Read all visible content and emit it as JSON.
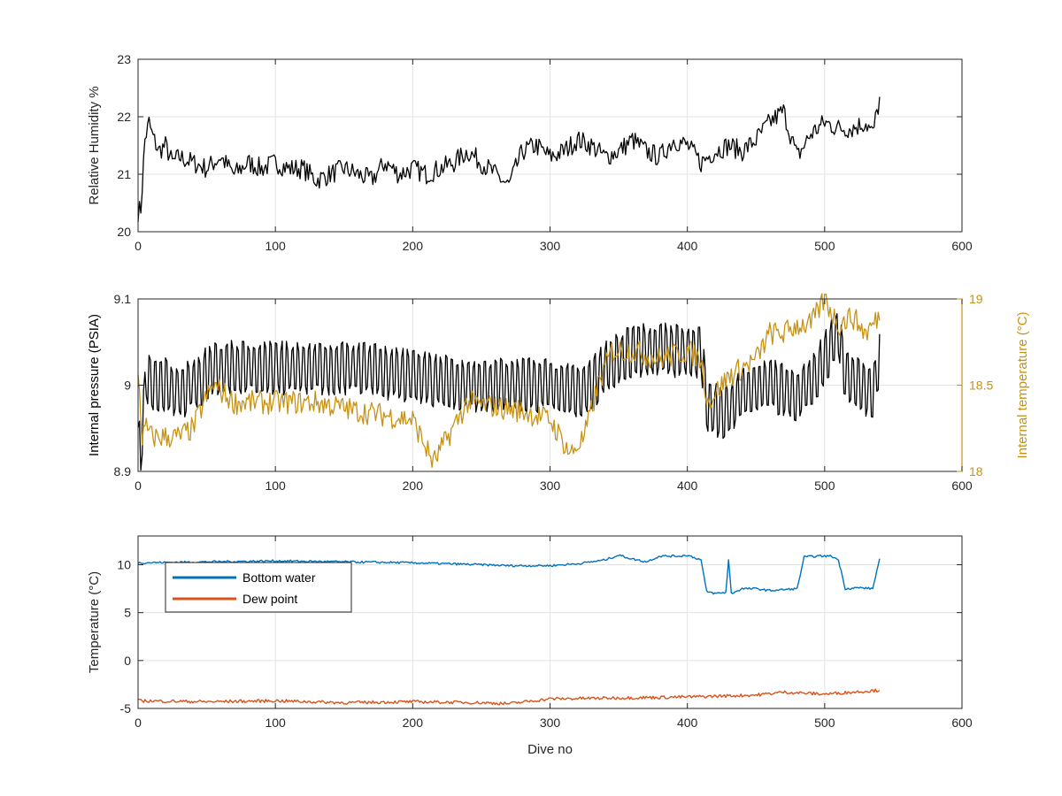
{
  "figure": {
    "background": "#ffffff"
  },
  "chart_data": [
    {
      "type": "line",
      "xlabel": "",
      "ylabel": "Relative Humidity %",
      "xlim": [
        0,
        600
      ],
      "ylim": [
        20,
        23
      ],
      "xticks": [
        "0",
        "100",
        "200",
        "300",
        "400",
        "500",
        "600"
      ],
      "yticks": [
        "20",
        "21",
        "22",
        "23"
      ],
      "grid": true,
      "series": [
        {
          "color": "#000000",
          "x": [
            0,
            2,
            5,
            8,
            10,
            15,
            20,
            25,
            30,
            40,
            50,
            60,
            70,
            80,
            90,
            100,
            110,
            120,
            130,
            140,
            150,
            160,
            170,
            180,
            190,
            200,
            210,
            220,
            230,
            240,
            250,
            260,
            270,
            280,
            290,
            300,
            310,
            320,
            330,
            340,
            350,
            360,
            370,
            380,
            390,
            400,
            410,
            420,
            430,
            440,
            450,
            460,
            470,
            480,
            490,
            500,
            510,
            520,
            530,
            535,
            540
          ],
          "y": [
            20.35,
            20.4,
            21.6,
            21.9,
            21.7,
            21.4,
            21.5,
            21.2,
            21.3,
            21.2,
            21.1,
            21.3,
            21.0,
            21.2,
            21.1,
            21.2,
            21.1,
            21.1,
            20.9,
            21.0,
            21.1,
            21.0,
            20.9,
            21.2,
            21.0,
            21.1,
            21.0,
            21.1,
            21.2,
            21.4,
            21.2,
            21.0,
            20.8,
            21.4,
            21.5,
            21.3,
            21.4,
            21.6,
            21.5,
            21.3,
            21.4,
            21.6,
            21.4,
            21.3,
            21.6,
            21.5,
            21.2,
            21.4,
            21.5,
            21.4,
            21.6,
            21.9,
            22.1,
            21.3,
            21.7,
            21.9,
            21.8,
            21.8,
            21.9,
            21.7,
            22.3
          ]
        }
      ]
    },
    {
      "type": "line",
      "xlabel": "",
      "ylabel": "Internal pressure (PSIA)",
      "ylabel_right": "Internal temperature (°C)",
      "xlim": [
        0,
        600
      ],
      "ylim": [
        8.9,
        9.1
      ],
      "ylim_right": [
        18,
        19
      ],
      "xticks": [
        "0",
        "100",
        "200",
        "300",
        "400",
        "500",
        "600"
      ],
      "yticks": [
        "8.9",
        "9",
        "9.1"
      ],
      "yticks_right": [
        "18",
        "18.5",
        "19"
      ],
      "grid": true,
      "right_axis_color": "#c69214",
      "series": [
        {
          "color": "#000000",
          "axis": "left",
          "x": [
            0,
            3,
            6,
            10,
            20,
            30,
            40,
            48,
            55,
            70,
            100,
            130,
            160,
            200,
            240,
            280,
            300,
            320,
            330,
            340,
            350,
            360,
            380,
            400,
            410,
            415,
            430,
            440,
            450,
            460,
            480,
            490,
            500,
            510,
            515,
            525,
            535,
            540
          ],
          "y": [
            8.92,
            8.94,
            9.01,
            9.0,
            9.0,
            8.99,
            9.0,
            9.01,
            9.02,
            9.02,
            9.02,
            9.02,
            9.02,
            9.01,
            9.0,
            9.0,
            9.0,
            8.99,
            9.0,
            9.02,
            9.03,
            9.04,
            9.04,
            9.04,
            9.04,
            8.97,
            8.97,
            8.99,
            9.0,
            9.0,
            8.99,
            9.0,
            9.03,
            9.06,
            9.01,
            9.0,
            8.99,
            9.03
          ]
        },
        {
          "color": "#c69214",
          "axis": "right",
          "x": [
            0,
            3,
            6,
            10,
            20,
            30,
            40,
            48,
            55,
            70,
            100,
            130,
            160,
            200,
            215,
            240,
            280,
            300,
            315,
            325,
            335,
            345,
            360,
            380,
            400,
            410,
            415,
            430,
            440,
            450,
            460,
            470,
            480,
            490,
            500,
            510,
            520,
            530,
            540
          ],
          "y": [
            18.6,
            18.2,
            18.25,
            18.2,
            18.2,
            18.2,
            18.25,
            18.4,
            18.5,
            18.4,
            18.4,
            18.4,
            18.35,
            18.3,
            18.05,
            18.4,
            18.35,
            18.3,
            18.1,
            18.2,
            18.5,
            18.7,
            18.7,
            18.65,
            18.7,
            18.65,
            18.4,
            18.55,
            18.6,
            18.65,
            18.8,
            18.8,
            18.85,
            18.85,
            19.0,
            18.85,
            18.9,
            18.8,
            18.9
          ]
        }
      ]
    },
    {
      "type": "line",
      "xlabel": "Dive no",
      "ylabel": "Temperature (°C)",
      "xlim": [
        0,
        600
      ],
      "ylim": [
        -5,
        13
      ],
      "xticks": [
        "0",
        "100",
        "200",
        "300",
        "400",
        "500",
        "600"
      ],
      "yticks": [
        "-5",
        "0",
        "5",
        "10"
      ],
      "grid": true,
      "legend": "top-left",
      "series": [
        {
          "name": "Bottom water",
          "color": "#0072bd",
          "x": [
            0,
            50,
            100,
            150,
            200,
            250,
            270,
            300,
            320,
            340,
            350,
            360,
            370,
            380,
            395,
            400,
            410,
            414,
            420,
            428,
            430,
            432,
            440,
            450,
            460,
            480,
            485,
            495,
            505,
            510,
            515,
            525,
            535,
            540
          ],
          "y": [
            10.2,
            10.3,
            10.4,
            10.3,
            10.2,
            10.0,
            9.9,
            9.9,
            10.1,
            10.5,
            11.0,
            10.6,
            10.3,
            10.9,
            10.9,
            11.0,
            10.5,
            7.2,
            7.0,
            7.1,
            10.5,
            7.0,
            7.5,
            7.5,
            7.3,
            7.5,
            10.8,
            10.9,
            10.9,
            10.5,
            7.5,
            7.6,
            7.5,
            10.6
          ]
        },
        {
          "name": "Dew point",
          "color": "#d95319",
          "x": [
            0,
            50,
            100,
            150,
            200,
            250,
            270,
            300,
            350,
            400,
            450,
            470,
            500,
            540
          ],
          "y": [
            -4.2,
            -4.3,
            -4.2,
            -4.4,
            -4.3,
            -4.4,
            -4.5,
            -4.0,
            -3.9,
            -3.8,
            -3.6,
            -3.3,
            -3.5,
            -3.1
          ]
        }
      ]
    }
  ]
}
